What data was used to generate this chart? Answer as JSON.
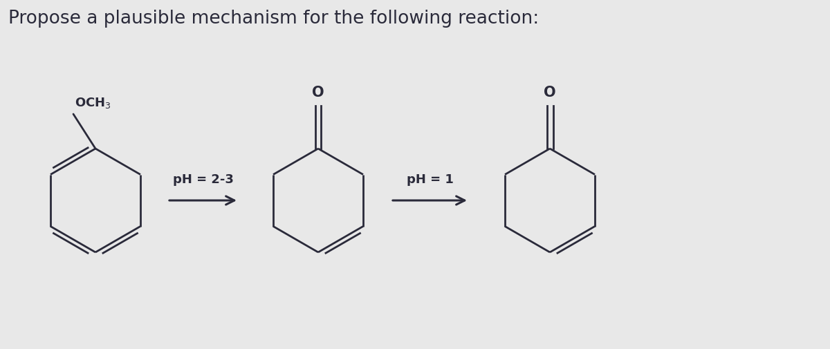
{
  "title": "Propose a plausible mechanism for the following reaction:",
  "title_fontsize": 19,
  "background_color": "#e8e8e8",
  "text_color": "#2a2a3a",
  "arrow1_label": "pH = 2-3",
  "arrow2_label": "pH = 1",
  "fig_width": 12.0,
  "fig_height": 5.06
}
